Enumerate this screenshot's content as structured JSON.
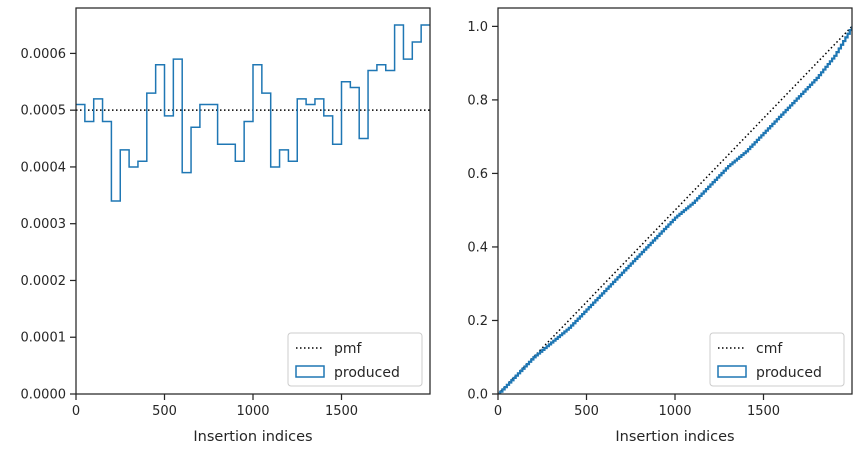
{
  "chart_data": [
    {
      "type": "step",
      "xlabel": "Insertion indices",
      "ylabel": "",
      "xlim": [
        0,
        2000
      ],
      "ylim": [
        0,
        0.00068
      ],
      "xticks": [
        0,
        500,
        1000,
        1500
      ],
      "yticks": [
        0,
        0.0001,
        0.0002,
        0.0003,
        0.0004,
        0.0005,
        0.0006
      ],
      "ytick_labels": [
        "0.0000",
        "0.0001",
        "0.0002",
        "0.0003",
        "0.0004",
        "0.0005",
        "0.0006"
      ],
      "legend_position": "bottom-right",
      "grid": false,
      "series": [
        {
          "name": "pmf",
          "style": "dotted",
          "color": "#000000",
          "x": [
            0,
            2000
          ],
          "y": [
            0.0005,
            0.0005
          ]
        },
        {
          "name": "produced",
          "style": "step",
          "color": "#1f77b4",
          "bin_width": 50,
          "bin_edges_start": 0,
          "values": [
            0.00051,
            0.00048,
            0.00052,
            0.00048,
            0.00034,
            0.00043,
            0.0004,
            0.00041,
            0.00053,
            0.00058,
            0.00049,
            0.00059,
            0.00039,
            0.00047,
            0.00051,
            0.00051,
            0.00044,
            0.00044,
            0.00041,
            0.00048,
            0.00058,
            0.00053,
            0.0004,
            0.00043,
            0.00041,
            0.00052,
            0.00051,
            0.00052,
            0.00049,
            0.00044,
            0.00055,
            0.00054,
            0.00045,
            0.00057,
            0.00058,
            0.00057,
            0.00065,
            0.00059,
            0.00062,
            0.00065
          ]
        }
      ]
    },
    {
      "type": "line",
      "xlabel": "Insertion indices",
      "ylabel": "",
      "xlim": [
        0,
        2000
      ],
      "ylim": [
        0,
        1.05
      ],
      "xticks": [
        0,
        500,
        1000,
        1500
      ],
      "yticks": [
        0,
        0.2,
        0.4,
        0.6,
        0.8,
        1.0
      ],
      "ytick_labels": [
        "0.0",
        "0.2",
        "0.4",
        "0.6",
        "0.8",
        "1.0"
      ],
      "legend_position": "bottom-right",
      "grid": false,
      "series": [
        {
          "name": "cmf",
          "style": "dotted",
          "color": "#000000",
          "x": [
            0,
            2000
          ],
          "y": [
            0,
            1.0
          ]
        },
        {
          "name": "produced",
          "style": "step",
          "color": "#1f77b4",
          "x": [
            0,
            100,
            200,
            300,
            400,
            500,
            600,
            700,
            800,
            900,
            1000,
            1100,
            1200,
            1300,
            1400,
            1500,
            1600,
            1700,
            1800,
            1900,
            2000
          ],
          "y": [
            0,
            0.05,
            0.1,
            0.14,
            0.18,
            0.23,
            0.28,
            0.33,
            0.38,
            0.43,
            0.48,
            0.52,
            0.57,
            0.62,
            0.66,
            0.71,
            0.76,
            0.81,
            0.86,
            0.92,
            1.0
          ]
        }
      ]
    }
  ]
}
